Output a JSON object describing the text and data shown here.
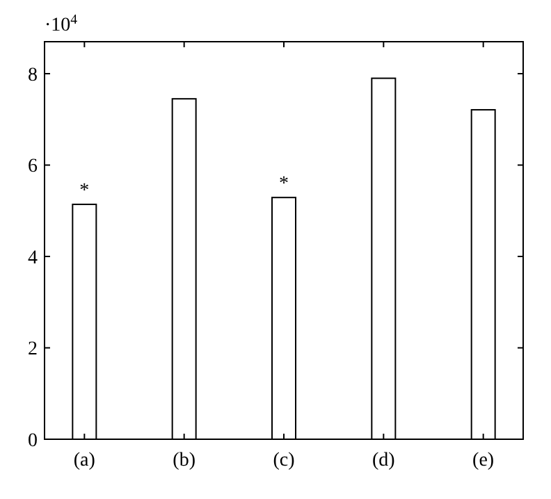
{
  "chart_data": {
    "type": "bar",
    "categories": [
      "(a)",
      "(b)",
      "(c)",
      "(d)",
      "(e)"
    ],
    "values": [
      5.14,
      7.45,
      5.29,
      7.9,
      7.21
    ],
    "color": "#ffffff",
    "ylim": [
      0,
      8.7
    ],
    "yticks": [
      0,
      2,
      4,
      6,
      8
    ],
    "annotations": [
      "·10$^{4}$",
      {
        "text": "*",
        "x": "(a)",
        "y": 5.14
      },
      {
        "text": "*",
        "x": "(c)",
        "y": 5.29
      }
    ]
  }
}
